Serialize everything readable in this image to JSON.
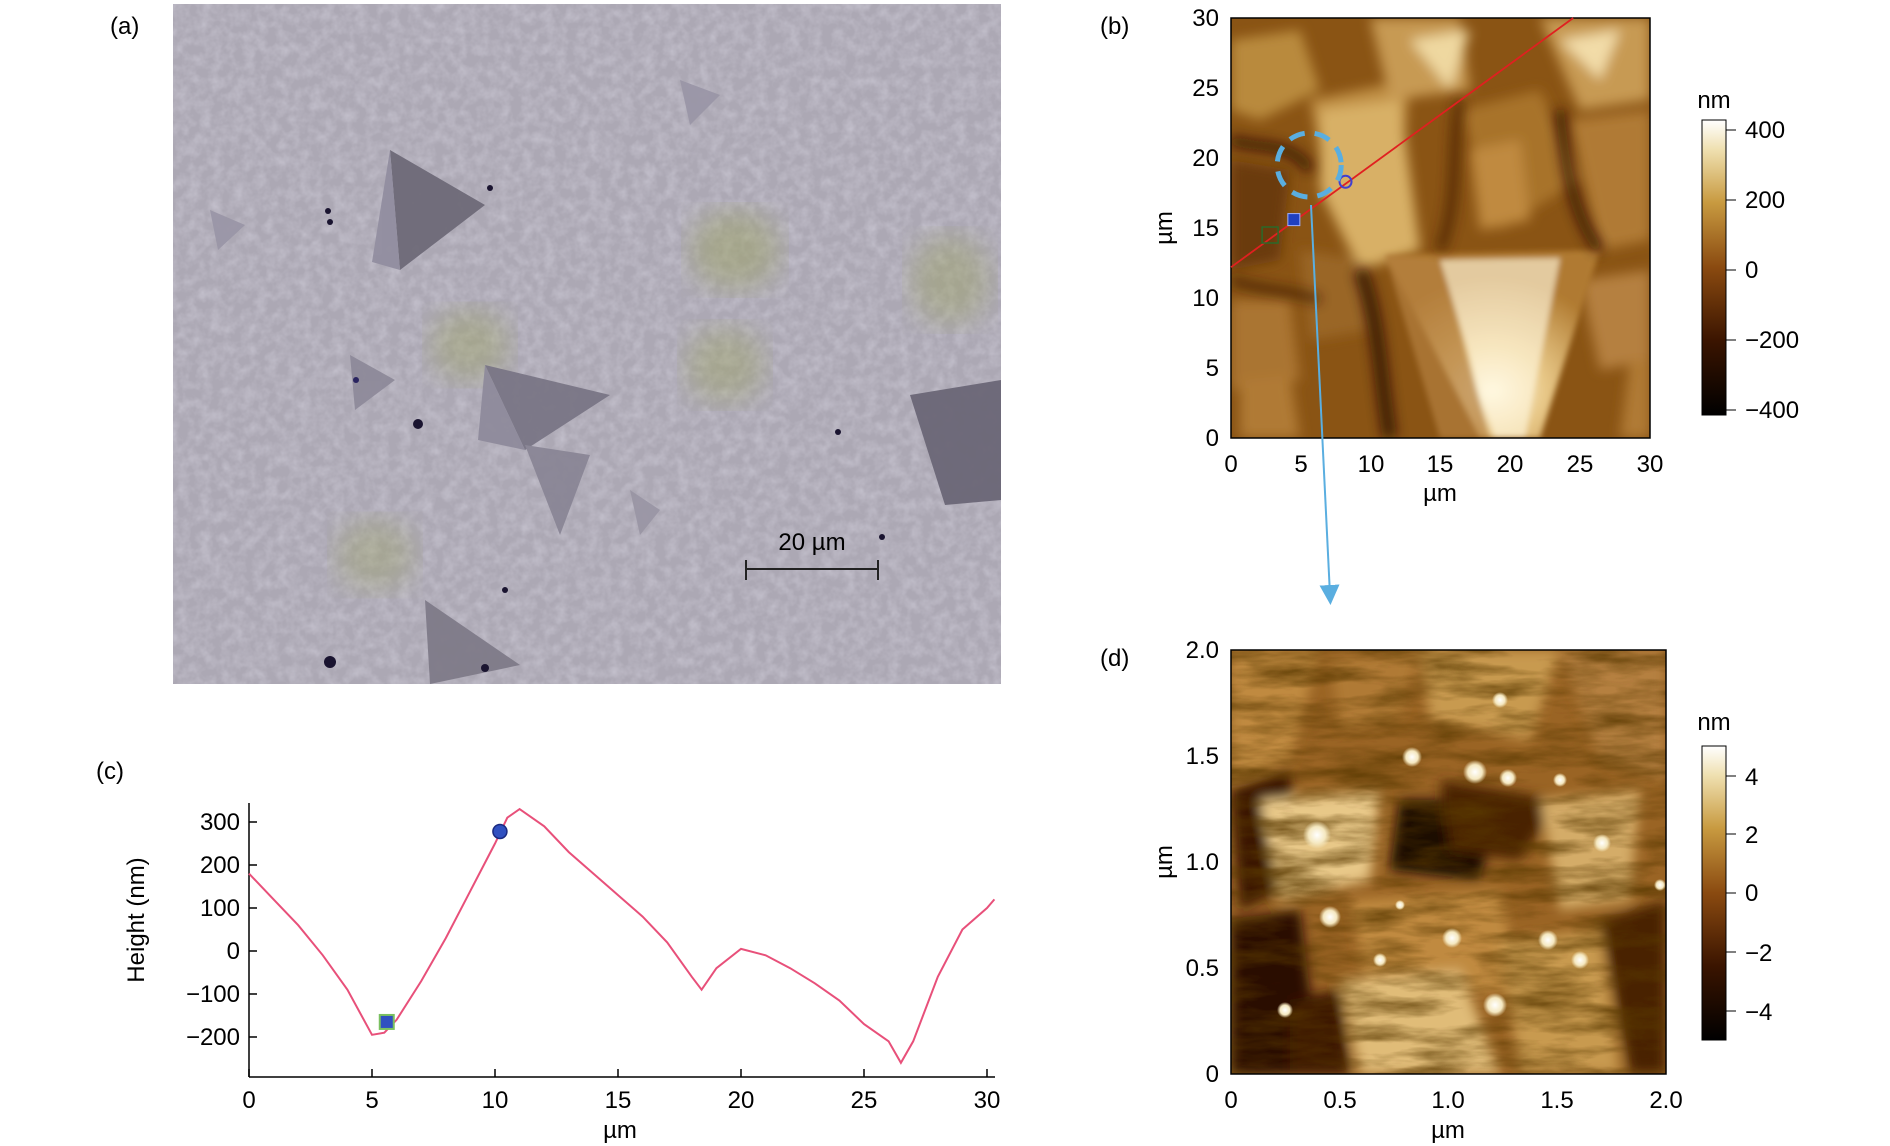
{
  "figure": {
    "panel_a": {
      "label": "(a)",
      "scale_bar_label": "20 µm"
    },
    "panel_b": {
      "label": "(b)",
      "colorbar_unit": "nm"
    },
    "panel_c": {
      "label": "(c)"
    },
    "panel_d": {
      "label": "(d)",
      "colorbar_unit": "nm"
    }
  },
  "chart_data": [
    {
      "id": "b",
      "type": "heatmap",
      "xlabel": "µm",
      "ylabel": "µm",
      "xlim": [
        0,
        30
      ],
      "ylim": [
        0,
        30
      ],
      "xticks": [
        "0",
        "5",
        "10",
        "15",
        "20",
        "25",
        "30"
      ],
      "yticks": [
        "0",
        "5",
        "10",
        "15",
        "20",
        "25",
        "30"
      ],
      "colorbar": {
        "unit": "nm",
        "range": [
          -450,
          450
        ],
        "ticks": [
          "400",
          "200",
          "0",
          "−200",
          "−400"
        ]
      },
      "profile_line": {
        "from": [
          0,
          12.2
        ],
        "to": [
          24.5,
          30
        ]
      },
      "markers": [
        {
          "shape": "square",
          "x": 4.5,
          "y": 15.6
        },
        {
          "shape": "circle",
          "x": 8.2,
          "y": 18.3
        }
      ]
    },
    {
      "id": "c",
      "type": "line",
      "xlabel": "µm",
      "ylabel": "Height (nm)",
      "xlim": [
        0,
        30
      ],
      "ylim": [
        -280,
        340
      ],
      "xticks": [
        "0",
        "5",
        "10",
        "15",
        "20",
        "25",
        "30"
      ],
      "yticks": [
        "300",
        "200",
        "100",
        "0",
        "−100",
        "−200"
      ],
      "series": [
        {
          "color": "#e8507a",
          "x": [
            0,
            1,
            2,
            3,
            4,
            5,
            5.5,
            6,
            7,
            8,
            9,
            10,
            10.5,
            11,
            12,
            13,
            14,
            15,
            16,
            17,
            18,
            18.4,
            19,
            20,
            21,
            22,
            23,
            24,
            25,
            26,
            26.5,
            27,
            28,
            29,
            30,
            30.3
          ],
          "y": [
            180,
            120,
            60,
            -10,
            -90,
            -195,
            -190,
            -160,
            -70,
            30,
            140,
            250,
            310,
            330,
            290,
            230,
            180,
            130,
            80,
            20,
            -60,
            -90,
            -40,
            5,
            -10,
            -40,
            -75,
            -115,
            -170,
            -210,
            -260,
            -210,
            -60,
            50,
            100,
            120
          ]
        }
      ],
      "markers": [
        {
          "shape": "square",
          "x": 5.6,
          "y": -165
        },
        {
          "shape": "circle",
          "x": 10.2,
          "y": 278
        }
      ]
    },
    {
      "id": "d",
      "type": "heatmap",
      "xlabel": "µm",
      "ylabel": "µm",
      "xlim": [
        0,
        2
      ],
      "ylim": [
        0,
        2
      ],
      "xticks": [
        "0",
        "0.5",
        "1.0",
        "1.5",
        "2.0"
      ],
      "yticks": [
        "0",
        "0.5",
        "1.0",
        "1.5",
        "2.0"
      ],
      "colorbar": {
        "unit": "nm",
        "range": [
          -5.5,
          5.5
        ],
        "ticks": [
          "4",
          "2",
          "0",
          "−2",
          "−4"
        ]
      }
    }
  ]
}
